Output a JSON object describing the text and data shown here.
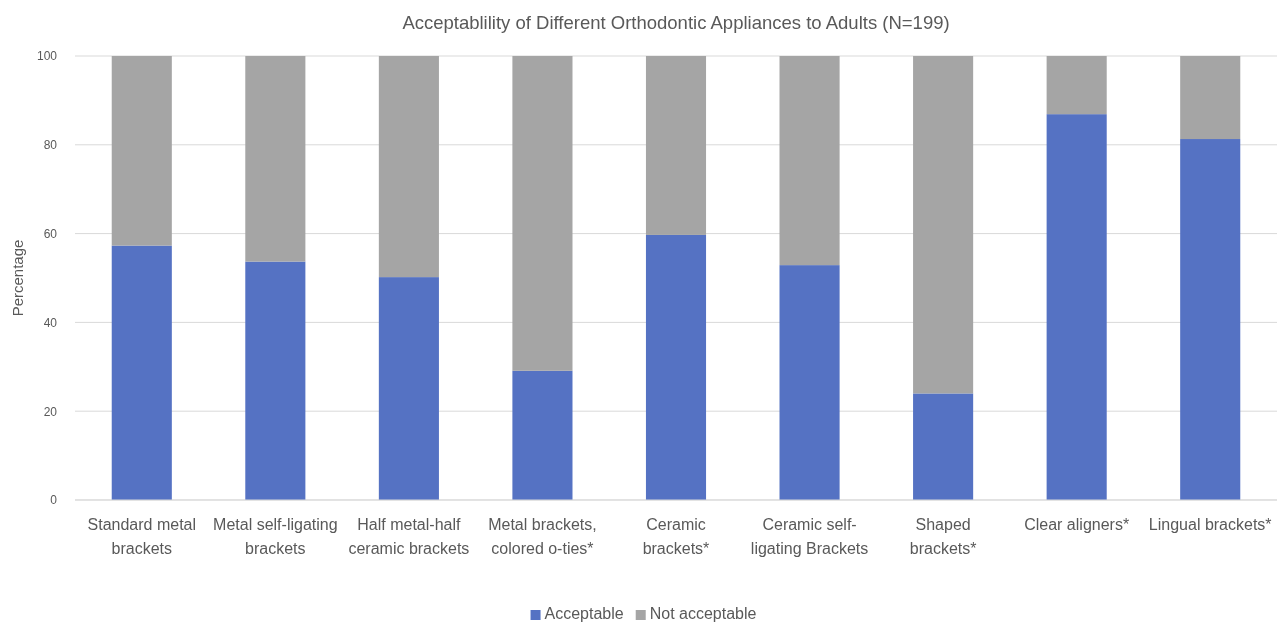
{
  "chart_data": {
    "type": "bar",
    "title": "Acceptablility of Different Orthodontic Appliances to Adults (N=199)",
    "ylabel": "Percentage",
    "categories": [
      "Standard metal brackets",
      "Metal self-ligating brackets",
      "Half metal-half ceramic brackets",
      "Metal brackets, colored o-ties*",
      "Ceramic brackets*",
      "Ceramic self-ligating Brackets",
      "Shaped brackets*",
      "Clear aligners*",
      "Lingual brackets*"
    ],
    "series": [
      {
        "name": "Acceptable",
        "color": "#5572c3",
        "values": [
          57.3,
          53.7,
          50.2,
          29.1,
          59.7,
          52.9,
          24,
          86.9,
          81.3
        ]
      },
      {
        "name": "Not acceptable",
        "color": "#a5a5a5",
        "values": [
          42.7,
          46.3,
          49.8,
          70.9,
          40.3,
          47.1,
          76,
          13.1,
          18.7
        ]
      }
    ],
    "stacked": true,
    "ylim": [
      0,
      100
    ],
    "yticks": [
      0,
      20,
      40,
      60,
      80,
      100
    ],
    "grid": "y",
    "legend": "bottom"
  }
}
